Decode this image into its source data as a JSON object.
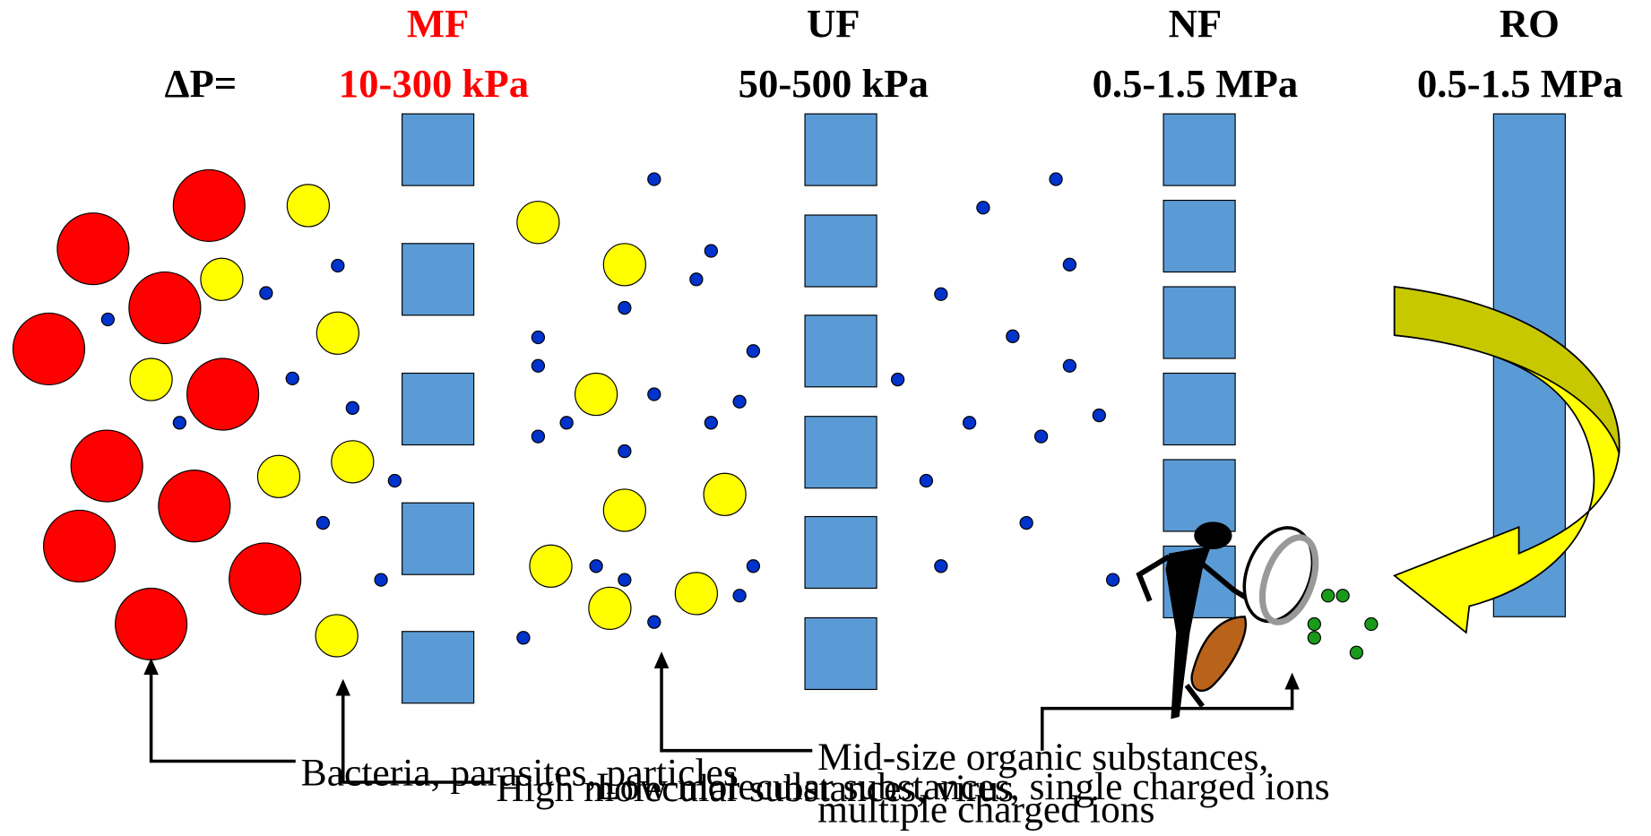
{
  "pressure_label": "ΔP=",
  "membranes": [
    {
      "name": "MF",
      "pressure": "10-300 kPa"
    },
    {
      "name": "UF",
      "pressure": "50-500 kPa"
    },
    {
      "name": "NF",
      "pressure": "0.5-1.5 MPa"
    },
    {
      "name": "RO",
      "pressure": "0.5-1.5 MPa"
    }
  ],
  "captions": [
    [
      "Bacteria, parasites, particles"
    ],
    [
      "High molecular substances, virus"
    ],
    [
      "Low molecular substances, single charged ions"
    ],
    [
      "Mid-size organic substances,",
      "multiple charged ions"
    ]
  ]
}
